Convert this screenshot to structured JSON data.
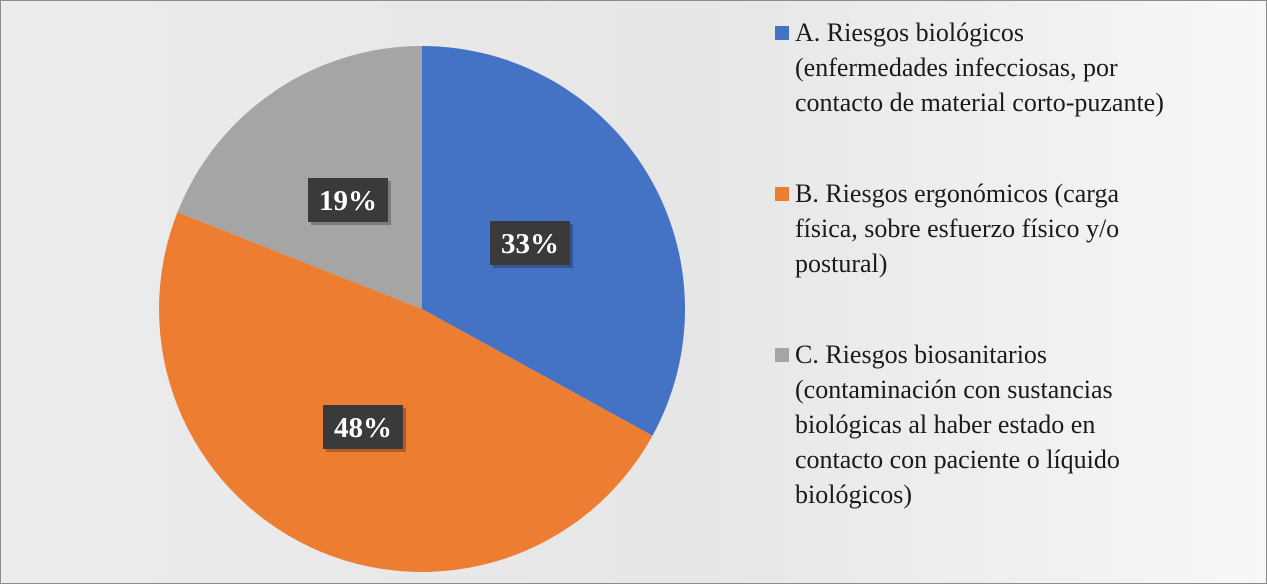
{
  "chart_data": {
    "type": "pie",
    "categories": [
      "A. Riesgos biológicos (enfermedades infecciosas, por contacto de material corto-puzante)",
      "B. Riesgos ergonómicos (carga física, sobre esfuerzo físico y/o postural)",
      "C. Riesgos biosanitarios (contaminación con sustancias biológicas al haber estado en contacto con paciente o líquido biológicos)"
    ],
    "values": [
      33,
      48,
      19
    ],
    "data_labels": [
      "33%",
      "48%",
      "19%"
    ],
    "colors": [
      "#4472C4",
      "#ED7D31",
      "#A5A5A5"
    ],
    "legend_placement": "right",
    "title": "",
    "xlabel": "",
    "ylabel": ""
  },
  "legend": [
    {
      "lines": [
        "A. Riesgos biológicos",
        "(enfermedades infecciosas, por",
        "contacto de material corto-puzante)"
      ]
    },
    {
      "lines": [
        "B. Riesgos ergonómicos (carga",
        "física, sobre esfuerzo físico y/o",
        "postural)"
      ]
    },
    {
      "lines": [
        "C. Riesgos biosanitarios",
        "(contaminación con sustancias",
        "biológicas al haber estado en",
        "contacto con paciente o líquido",
        "biológicos)"
      ]
    }
  ]
}
